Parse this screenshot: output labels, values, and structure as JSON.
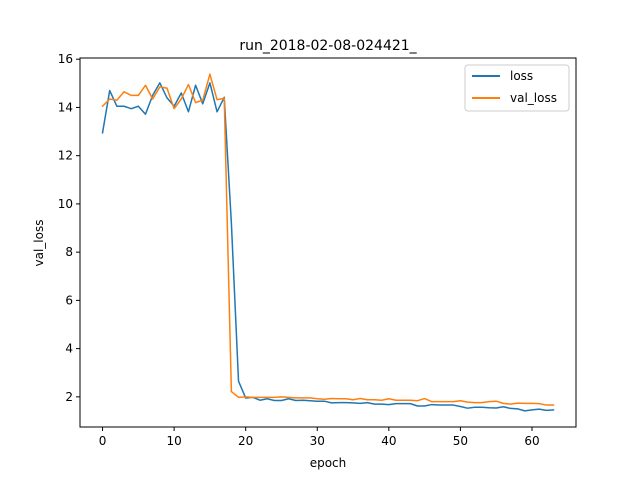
{
  "chart_data": {
    "type": "line",
    "title": "run_2018-02-08-024421_",
    "xlabel": "epoch",
    "ylabel": "val_loss",
    "xlim": [
      -3.15,
      66.15
    ],
    "ylim": [
      0.75,
      16.05
    ],
    "xticks": [
      0,
      10,
      20,
      30,
      40,
      50,
      60
    ],
    "yticks": [
      2,
      4,
      6,
      8,
      10,
      12,
      14,
      16
    ],
    "grid": false,
    "legend_position": "top-right",
    "x": [
      0,
      1,
      2,
      3,
      4,
      5,
      6,
      7,
      8,
      9,
      10,
      11,
      12,
      13,
      14,
      15,
      16,
      17,
      18,
      19,
      20,
      21,
      22,
      23,
      24,
      25,
      26,
      27,
      28,
      29,
      30,
      31,
      32,
      33,
      34,
      35,
      36,
      37,
      38,
      39,
      40,
      41,
      42,
      43,
      44,
      45,
      46,
      47,
      48,
      49,
      50,
      51,
      52,
      53,
      54,
      55,
      56,
      57,
      58,
      59,
      60,
      61,
      62,
      63
    ],
    "series": [
      {
        "name": "loss",
        "color": "#1f77b4",
        "values": [
          12.95,
          14.7,
          14.05,
          14.05,
          13.95,
          14.05,
          13.72,
          14.5,
          15.02,
          14.4,
          14.05,
          14.6,
          13.82,
          14.92,
          14.15,
          15.02,
          13.82,
          14.42,
          9.2,
          2.65,
          1.95,
          1.98,
          1.86,
          1.92,
          1.85,
          1.85,
          1.92,
          1.85,
          1.86,
          1.84,
          1.82,
          1.82,
          1.75,
          1.76,
          1.76,
          1.75,
          1.73,
          1.76,
          1.7,
          1.7,
          1.68,
          1.72,
          1.72,
          1.72,
          1.62,
          1.62,
          1.68,
          1.66,
          1.66,
          1.66,
          1.6,
          1.53,
          1.57,
          1.57,
          1.55,
          1.54,
          1.59,
          1.52,
          1.5,
          1.42,
          1.46,
          1.49,
          1.44,
          1.46
        ]
      },
      {
        "name": "val_loss",
        "color": "#ff7f0e",
        "values": [
          14.05,
          14.35,
          14.3,
          14.65,
          14.5,
          14.5,
          14.92,
          14.35,
          14.85,
          14.8,
          13.95,
          14.35,
          14.95,
          14.2,
          14.3,
          15.38,
          14.32,
          14.38,
          2.22,
          1.98,
          2.0,
          1.98,
          1.98,
          1.98,
          1.98,
          2.0,
          1.98,
          1.96,
          1.96,
          1.96,
          1.92,
          1.9,
          1.93,
          1.92,
          1.92,
          1.88,
          1.93,
          1.88,
          1.88,
          1.86,
          1.92,
          1.86,
          1.86,
          1.86,
          1.84,
          1.93,
          1.8,
          1.8,
          1.8,
          1.8,
          1.84,
          1.78,
          1.76,
          1.76,
          1.8,
          1.82,
          1.73,
          1.7,
          1.74,
          1.73,
          1.73,
          1.72,
          1.66,
          1.66
        ]
      }
    ]
  }
}
